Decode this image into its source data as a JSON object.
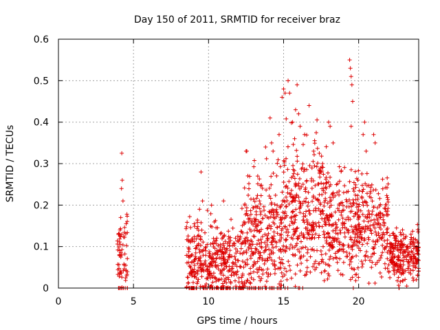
{
  "chart_data": {
    "type": "scatter",
    "title": "Day 150 of 2011, SRMTID for receiver braz",
    "xlabel": "GPS time / hours",
    "ylabel": "SRMTID / TECUs",
    "xlim": [
      0,
      24
    ],
    "ylim": [
      0,
      0.6
    ],
    "xticks": [
      0,
      5,
      10,
      15,
      20
    ],
    "yticks": [
      0,
      0.1,
      0.2,
      0.3,
      0.4,
      0.5,
      0.6
    ],
    "xtick_labels": [
      "0",
      "5",
      "10",
      "15",
      "20"
    ],
    "ytick_labels": [
      "0",
      "0.1",
      "0.2",
      "0.3",
      "0.4",
      "0.5",
      "0.6"
    ],
    "grid": true,
    "marker": "+",
    "color": "#dd0000",
    "clusters": [
      {
        "x_start": 3.9,
        "x_end": 4.6,
        "y_base": 0.06,
        "y_spread": 0.08,
        "count": 70
      },
      {
        "x_start": 8.5,
        "x_end": 12.3,
        "y_base": 0.06,
        "y_spread": 0.08,
        "count": 420
      },
      {
        "x_start": 12.3,
        "x_end": 15.0,
        "y_base": 0.12,
        "y_spread": 0.12,
        "count": 330
      },
      {
        "x_start": 15.0,
        "x_end": 18.0,
        "y_base": 0.18,
        "y_spread": 0.13,
        "count": 360
      },
      {
        "x_start": 18.0,
        "x_end": 22.0,
        "y_base": 0.15,
        "y_spread": 0.09,
        "count": 420
      },
      {
        "x_start": 22.0,
        "x_end": 24.0,
        "y_base": 0.08,
        "y_spread": 0.05,
        "count": 240
      }
    ],
    "points": [
      [
        4.05,
        0.13
      ],
      [
        4.1,
        0.14
      ],
      [
        4.15,
        0.17
      ],
      [
        4.2,
        0.24
      ],
      [
        4.25,
        0.26
      ],
      [
        4.22,
        0.325
      ],
      [
        4.3,
        0.21
      ],
      [
        9.5,
        0.28
      ],
      [
        9.6,
        0.21
      ],
      [
        9.4,
        0.19
      ],
      [
        11.0,
        0.21
      ],
      [
        10.2,
        0.2
      ],
      [
        12.5,
        0.33
      ],
      [
        12.55,
        0.33
      ],
      [
        13.8,
        0.34
      ],
      [
        14.1,
        0.41
      ],
      [
        14.2,
        0.35
      ],
      [
        14.3,
        0.33
      ],
      [
        14.7,
        0.37
      ],
      [
        14.9,
        0.46
      ],
      [
        15.0,
        0.48
      ],
      [
        15.1,
        0.47
      ],
      [
        15.3,
        0.5
      ],
      [
        15.4,
        0.47
      ],
      [
        15.6,
        0.4
      ],
      [
        15.8,
        0.43
      ],
      [
        15.9,
        0.49
      ],
      [
        16.0,
        0.42
      ],
      [
        16.1,
        0.39
      ],
      [
        16.4,
        0.37
      ],
      [
        16.7,
        0.44
      ],
      [
        17.0,
        0.33
      ],
      [
        17.6,
        0.3
      ],
      [
        18.0,
        0.4
      ],
      [
        18.1,
        0.39
      ],
      [
        18.3,
        0.35
      ],
      [
        19.4,
        0.55
      ],
      [
        19.45,
        0.53
      ],
      [
        19.5,
        0.51
      ],
      [
        19.55,
        0.49
      ],
      [
        19.6,
        0.45
      ],
      [
        19.5,
        0.39
      ],
      [
        20.3,
        0.37
      ],
      [
        20.4,
        0.4
      ],
      [
        20.5,
        0.33
      ],
      [
        21.0,
        0.37
      ],
      [
        21.1,
        0.35
      ],
      [
        15.1,
        0.0
      ],
      [
        11.4,
        0.0
      ],
      [
        4.0,
        0.0
      ],
      [
        23.9,
        0.06
      ]
    ]
  }
}
